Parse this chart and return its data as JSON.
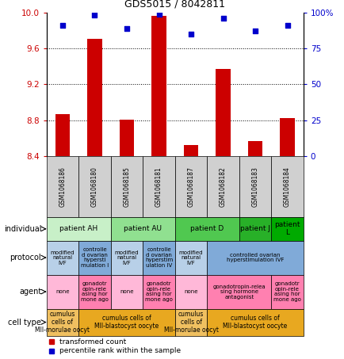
{
  "title": "GDS5015 / 8042811",
  "samples": [
    "GSM1068186",
    "GSM1068180",
    "GSM1068185",
    "GSM1068181",
    "GSM1068187",
    "GSM1068182",
    "GSM1068183",
    "GSM1068184"
  ],
  "bar_values": [
    8.87,
    9.71,
    8.81,
    9.96,
    8.52,
    9.37,
    8.57,
    8.82
  ],
  "dot_values": [
    91,
    98,
    89,
    99,
    85,
    96,
    87,
    91
  ],
  "ylim": [
    8.4,
    10.0
  ],
  "y2lim": [
    0,
    100
  ],
  "yticks": [
    8.4,
    8.8,
    9.2,
    9.6,
    10.0
  ],
  "y2ticks": [
    0,
    25,
    50,
    75,
    100
  ],
  "bar_color": "#cc0000",
  "dot_color": "#0000cc",
  "individual_row": [
    {
      "label": "patient AH",
      "span": [
        0,
        2
      ],
      "color": "#c8f0c8"
    },
    {
      "label": "patient AU",
      "span": [
        2,
        4
      ],
      "color": "#90e090"
    },
    {
      "label": "patient D",
      "span": [
        4,
        6
      ],
      "color": "#50c850"
    },
    {
      "label": "patient J",
      "span": [
        6,
        7
      ],
      "color": "#28b028"
    },
    {
      "label": "patient\nL",
      "span": [
        7,
        8
      ],
      "color": "#00aa00"
    }
  ],
  "protocol_row": [
    {
      "label": "modified\nnatural\nIVF",
      "span": [
        0,
        1
      ],
      "color": "#b8d0e8"
    },
    {
      "label": "controlle\nd ovarian\nhypersti\nmulation I",
      "span": [
        1,
        2
      ],
      "color": "#80aad8"
    },
    {
      "label": "modified\nnatural\nIVF",
      "span": [
        2,
        3
      ],
      "color": "#b8d0e8"
    },
    {
      "label": "controlle\nd ovarian\nhyperstim\nulation IV",
      "span": [
        3,
        4
      ],
      "color": "#80aad8"
    },
    {
      "label": "modified\nnatural\nIVF",
      "span": [
        4,
        5
      ],
      "color": "#b8d0e8"
    },
    {
      "label": "controlled ovarian\nhyperstimulation IVF",
      "span": [
        5,
        8
      ],
      "color": "#80aad8"
    }
  ],
  "agent_row": [
    {
      "label": "none",
      "span": [
        0,
        1
      ],
      "color": "#ffb8d8"
    },
    {
      "label": "gonadotr\nopin-rele\nasing hor\nmone ago",
      "span": [
        1,
        2
      ],
      "color": "#ff80b0"
    },
    {
      "label": "none",
      "span": [
        2,
        3
      ],
      "color": "#ffb8d8"
    },
    {
      "label": "gonadotr\nopin-rele\nasing hor\nmone ago",
      "span": [
        3,
        4
      ],
      "color": "#ff80b0"
    },
    {
      "label": "none",
      "span": [
        4,
        5
      ],
      "color": "#ffb8d8"
    },
    {
      "label": "gonadotropin-relea\nsing hormone\nantagonist",
      "span": [
        5,
        7
      ],
      "color": "#ff80b0"
    },
    {
      "label": "gonadotr\nopin-rele\nasing hor\nmone ago",
      "span": [
        7,
        8
      ],
      "color": "#ff80b0"
    }
  ],
  "celltype_row": [
    {
      "label": "cumulus\ncells of\nMII-morulae oocyt",
      "span": [
        0,
        1
      ],
      "color": "#f0c060"
    },
    {
      "label": "cumulus cells of\nMII-blastocyst oocyte",
      "span": [
        1,
        4
      ],
      "color": "#e8a820"
    },
    {
      "label": "cumulus\ncells of\nMII-morulae oocyt",
      "span": [
        4,
        5
      ],
      "color": "#f0c060"
    },
    {
      "label": "cumulus cells of\nMII-blastocyst oocyte",
      "span": [
        5,
        8
      ],
      "color": "#e8a820"
    }
  ],
  "row_labels": [
    "individual",
    "protocol",
    "agent",
    "cell type"
  ],
  "sample_bg_color": "#d0d0d0"
}
